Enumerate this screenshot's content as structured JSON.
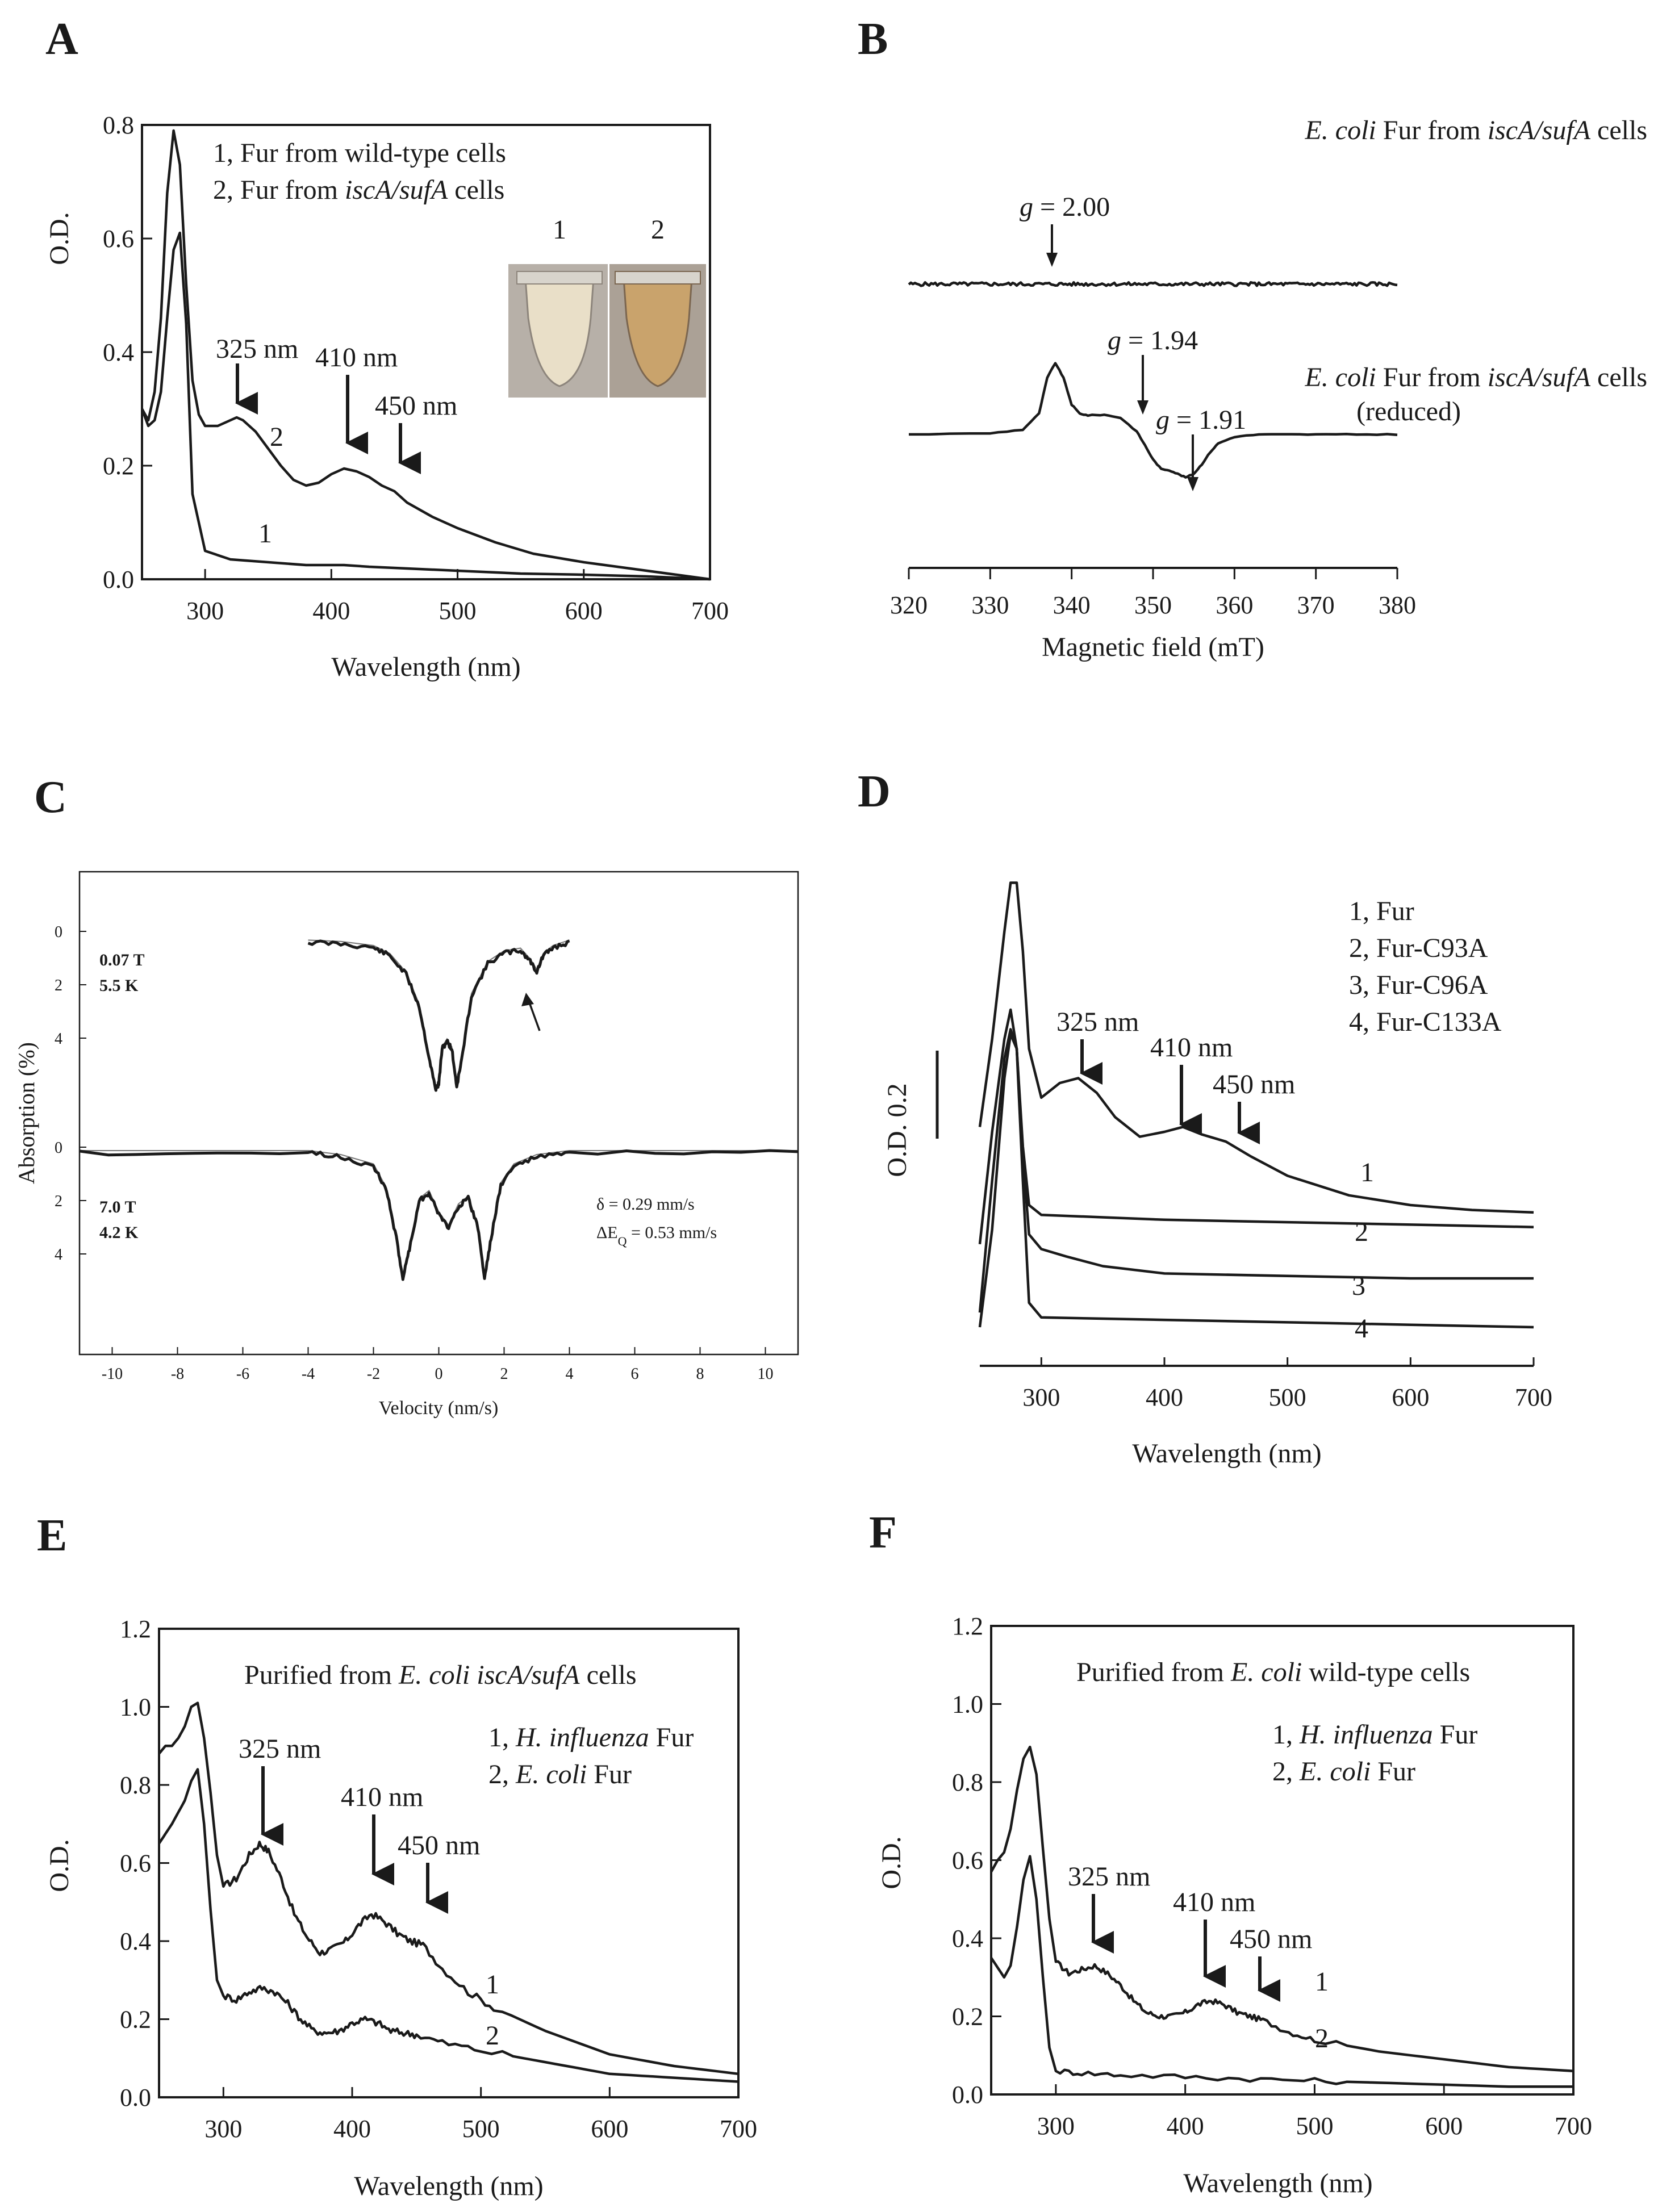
{
  "panels": {
    "A": {
      "letter": "A"
    },
    "B": {
      "letter": "B"
    },
    "C": {
      "letter": "C"
    },
    "D": {
      "letter": "D"
    },
    "E": {
      "letter": "E"
    },
    "F": {
      "letter": "F"
    }
  },
  "colors": {
    "ink": "#1a1a1a",
    "fit": "#777777",
    "tube1": "#e9dfc8",
    "tube2": "#c9a36c",
    "photo_bg": "#b7b0a8"
  },
  "chart_data": [
    {
      "id": "A",
      "type": "line",
      "xlabel": "Wavelength (nm)",
      "ylabel": "O.D.",
      "xlim": [
        250,
        700
      ],
      "ylim": [
        0,
        0.8
      ],
      "xticks": [
        300,
        400,
        500,
        600,
        700
      ],
      "yticks": [
        0.0,
        0.2,
        0.4,
        0.6,
        0.8
      ],
      "legend": [
        "1, Fur from wild-type cells",
        "2, Fur from iscA/sufA cells"
      ],
      "annotations": [
        {
          "text": "325 nm",
          "x": 325,
          "y": 0.29
        },
        {
          "text": "410 nm",
          "x": 410,
          "y": 0.2
        },
        {
          "text": "450 nm",
          "x": 450,
          "y": 0.2
        }
      ],
      "inset": {
        "labels": [
          "1",
          "2"
        ]
      },
      "series": [
        {
          "name": "1",
          "x": [
            250,
            255,
            260,
            265,
            270,
            275,
            280,
            285,
            290,
            300,
            320,
            350,
            380,
            410,
            430,
            450,
            500,
            550,
            600,
            650,
            700
          ],
          "y": [
            0.3,
            0.27,
            0.28,
            0.33,
            0.46,
            0.58,
            0.61,
            0.45,
            0.15,
            0.05,
            0.035,
            0.03,
            0.025,
            0.025,
            0.022,
            0.02,
            0.015,
            0.01,
            0.008,
            0.005,
            0.0
          ]
        },
        {
          "name": "2",
          "x": [
            250,
            255,
            260,
            265,
            270,
            275,
            280,
            285,
            290,
            295,
            300,
            310,
            320,
            325,
            330,
            340,
            350,
            360,
            370,
            380,
            390,
            400,
            410,
            420,
            430,
            440,
            450,
            460,
            480,
            500,
            530,
            560,
            600,
            650,
            700
          ],
          "y": [
            0.3,
            0.28,
            0.33,
            0.46,
            0.68,
            0.79,
            0.73,
            0.52,
            0.35,
            0.29,
            0.27,
            0.27,
            0.28,
            0.285,
            0.28,
            0.26,
            0.23,
            0.2,
            0.175,
            0.165,
            0.17,
            0.185,
            0.195,
            0.19,
            0.18,
            0.165,
            0.155,
            0.135,
            0.11,
            0.09,
            0.065,
            0.045,
            0.03,
            0.015,
            0.0
          ]
        }
      ]
    },
    {
      "id": "B",
      "type": "line",
      "xlabel": "Magnetic field (mT)",
      "xlim": [
        320,
        380
      ],
      "xticks": [
        320,
        330,
        340,
        350,
        360,
        370,
        380
      ],
      "labels": [
        {
          "text_italic": "E. coli",
          "text": " Fur from ",
          "text_italic2": "iscA/sufA",
          "text2": " cells"
        },
        {
          "text_italic": "E. coli",
          "text": " Fur from ",
          "text_italic2": "iscA/sufA",
          "text2": " cells",
          "sub": "(reduced)"
        }
      ],
      "annotations": [
        {
          "g": "g",
          "text": " = 2.00",
          "x": 338
        },
        {
          "g": "g",
          "text": " = 1.94",
          "x": 349
        },
        {
          "g": "g",
          "text": " = 1.91",
          "x": 355
        }
      ],
      "series": [
        {
          "name": "unreduced",
          "x": [
            320,
            380
          ],
          "y": [
            1.95,
            1.95
          ]
        },
        {
          "name": "reduced",
          "x": [
            320,
            330,
            334,
            336,
            337,
            338,
            339,
            340,
            341,
            342,
            344,
            346,
            348,
            349,
            350,
            351,
            352,
            353,
            354,
            355,
            356,
            357,
            358,
            360,
            363,
            366,
            370,
            375,
            380
          ],
          "y": [
            0,
            0.02,
            0.08,
            0.35,
            0.95,
            1.2,
            0.95,
            0.5,
            0.35,
            0.32,
            0.33,
            0.28,
            0.05,
            -0.18,
            -0.42,
            -0.58,
            -0.6,
            -0.66,
            -0.72,
            -0.66,
            -0.5,
            -0.3,
            -0.15,
            -0.04,
            0,
            0,
            0,
            0,
            0
          ]
        }
      ]
    },
    {
      "id": "C",
      "type": "line",
      "xlabel": "Velocity (nm/s)",
      "ylabel": "Absorption (%)",
      "xlim": [
        -11,
        11
      ],
      "xticks": [
        -10,
        -8,
        -6,
        -4,
        -2,
        0,
        2,
        4,
        6,
        8,
        10
      ],
      "upper_yticks": [
        0,
        2,
        4
      ],
      "lower_yticks": [
        0,
        2,
        4
      ],
      "labels_upper": [
        "0.07  T",
        "5.5 K"
      ],
      "labels_lower": [
        "7.0  T",
        "4.2 K"
      ],
      "params": [
        "δ = 0.29 mm/s",
        "ΔE",
        "Q",
        " = 0.53 mm/s"
      ],
      "series": [
        {
          "name": "0.07 T, 5.5 K",
          "x": [
            -4,
            -3,
            -2,
            -1.5,
            -1,
            -0.6,
            -0.3,
            -0.1,
            0,
            0.1,
            0.25,
            0.4,
            0.55,
            0.7,
            1,
            1.5,
            2,
            2.5,
            2.8,
            3,
            3.2,
            3.5,
            4
          ],
          "y": [
            0.2,
            0.25,
            0.4,
            0.7,
            1.4,
            2.6,
            4.5,
            5.7,
            5.5,
            4.2,
            3.9,
            4.2,
            5.6,
            4.6,
            2.2,
            1.0,
            0.6,
            0.5,
            0.9,
            1.3,
            0.7,
            0.4,
            0.2
          ]
        },
        {
          "name": "7.0 T, 4.2 K",
          "x": [
            -11,
            -4,
            -3,
            -2,
            -1.6,
            -1.3,
            -1.1,
            -0.9,
            -0.6,
            -0.3,
            0,
            0.3,
            0.6,
            0.9,
            1.2,
            1.4,
            1.6,
            1.9,
            2.3,
            3,
            4,
            11
          ],
          "y": [
            0,
            0,
            0.15,
            0.5,
            1.4,
            3.2,
            4.7,
            3.6,
            1.8,
            1.5,
            2.3,
            2.8,
            2.0,
            1.7,
            2.8,
            4.7,
            3.2,
            1.2,
            0.5,
            0.15,
            0,
            0
          ]
        }
      ]
    },
    {
      "id": "D",
      "type": "line",
      "xlabel": "Wavelength (nm)",
      "ylabel": "O.D. 0.2",
      "xlim": [
        250,
        700
      ],
      "xticks": [
        300,
        400,
        500,
        600,
        700
      ],
      "legend": [
        "1, Fur",
        "2, Fur-C93A",
        "3, Fur-C96A",
        "4, Fur-C133A"
      ],
      "annotations": [
        {
          "text": "325 nm",
          "x": 330
        },
        {
          "text": "410 nm",
          "x": 415
        },
        {
          "text": "450 nm",
          "x": 460
        }
      ],
      "series": [
        {
          "name": "1",
          "x": [
            250,
            260,
            270,
            275,
            280,
            285,
            290,
            300,
            315,
            330,
            345,
            360,
            380,
            400,
            415,
            430,
            450,
            470,
            500,
            550,
            600,
            650,
            700
          ],
          "y": [
            0.46,
            0.64,
            0.86,
            0.96,
            0.96,
            0.82,
            0.62,
            0.52,
            0.55,
            0.56,
            0.53,
            0.48,
            0.44,
            0.45,
            0.46,
            0.445,
            0.43,
            0.4,
            0.36,
            0.32,
            0.3,
            0.29,
            0.285
          ]
        },
        {
          "name": "2",
          "x": [
            250,
            260,
            270,
            275,
            280,
            285,
            290,
            300,
            350,
            400,
            500,
            600,
            700
          ],
          "y": [
            0.22,
            0.45,
            0.64,
            0.7,
            0.62,
            0.42,
            0.3,
            0.28,
            0.275,
            0.27,
            0.265,
            0.26,
            0.255
          ]
        },
        {
          "name": "3",
          "x": [
            250,
            260,
            270,
            275,
            280,
            285,
            290,
            300,
            320,
            350,
            400,
            500,
            600,
            700
          ],
          "y": [
            0.08,
            0.35,
            0.6,
            0.66,
            0.62,
            0.4,
            0.24,
            0.21,
            0.195,
            0.175,
            0.16,
            0.155,
            0.15,
            0.15
          ]
        },
        {
          "name": "4",
          "x": [
            250,
            260,
            270,
            275,
            280,
            285,
            290,
            300,
            400,
            500,
            600,
            700
          ],
          "y": [
            0.05,
            0.25,
            0.56,
            0.65,
            0.62,
            0.35,
            0.1,
            0.07,
            0.065,
            0.06,
            0.055,
            0.05
          ]
        }
      ]
    },
    {
      "id": "E",
      "type": "line",
      "xlabel": "Wavelength (nm)",
      "ylabel": "O.D.",
      "xlim": [
        250,
        700
      ],
      "ylim": [
        0,
        1.2
      ],
      "xticks": [
        300,
        400,
        500,
        600,
        700
      ],
      "yticks": [
        0.0,
        0.2,
        0.4,
        0.6,
        0.8,
        1.0,
        1.2
      ],
      "title": {
        "text": "Purified from ",
        "italic": "E. coli iscA/sufA",
        "text2": " cells"
      },
      "legend": [
        {
          "num": "1, ",
          "italic": "H. influenza",
          "text": " Fur"
        },
        {
          "num": "2, ",
          "italic": "E. coli",
          "text": " Fur"
        }
      ],
      "annotations": [
        {
          "text": "325 nm",
          "x": 328,
          "y": 0.66
        },
        {
          "text": "410 nm",
          "x": 415,
          "y": 0.48
        },
        {
          "text": "450 nm",
          "x": 455,
          "y": 0.39
        }
      ],
      "series": [
        {
          "name": "1",
          "x": [
            250,
            255,
            260,
            265,
            270,
            275,
            280,
            285,
            290,
            295,
            300,
            310,
            320,
            328,
            335,
            345,
            355,
            365,
            375,
            385,
            395,
            405,
            415,
            425,
            435,
            445,
            455,
            470,
            490,
            510,
            550,
            600,
            650,
            700
          ],
          "y": [
            0.88,
            0.9,
            0.9,
            0.92,
            0.95,
            1.0,
            1.01,
            0.92,
            0.78,
            0.62,
            0.54,
            0.56,
            0.62,
            0.65,
            0.63,
            0.56,
            0.47,
            0.41,
            0.37,
            0.38,
            0.4,
            0.44,
            0.47,
            0.45,
            0.42,
            0.4,
            0.39,
            0.33,
            0.27,
            0.23,
            0.17,
            0.11,
            0.08,
            0.06
          ]
        },
        {
          "name": "2",
          "x": [
            250,
            260,
            270,
            275,
            280,
            285,
            290,
            295,
            300,
            310,
            320,
            330,
            340,
            350,
            360,
            370,
            380,
            390,
            400,
            410,
            420,
            430,
            440,
            450,
            470,
            500,
            550,
            600,
            650,
            700
          ],
          "y": [
            0.65,
            0.7,
            0.76,
            0.81,
            0.84,
            0.7,
            0.48,
            0.3,
            0.26,
            0.25,
            0.27,
            0.28,
            0.27,
            0.24,
            0.2,
            0.17,
            0.165,
            0.17,
            0.19,
            0.2,
            0.19,
            0.17,
            0.165,
            0.16,
            0.14,
            0.12,
            0.09,
            0.06,
            0.05,
            0.04
          ]
        }
      ]
    },
    {
      "id": "F",
      "type": "line",
      "xlabel": "Wavelength (nm)",
      "ylabel": "O.D.",
      "xlim": [
        250,
        700
      ],
      "ylim": [
        0,
        1.2
      ],
      "xticks": [
        300,
        400,
        500,
        600,
        700
      ],
      "yticks": [
        0.0,
        0.2,
        0.4,
        0.6,
        0.8,
        1.0,
        1.2
      ],
      "title": {
        "text": "Purified from ",
        "italic": "E. coli",
        "text2": " wild-type cells"
      },
      "legend": [
        {
          "num": "1, ",
          "italic": "H. influenza",
          "text": " Fur"
        },
        {
          "num": "2, ",
          "italic": "E. coli",
          "text": " Fur"
        }
      ],
      "annotations": [
        {
          "text": "325 nm",
          "x": 325,
          "y": 0.33
        },
        {
          "text": "410 nm",
          "x": 412,
          "y": 0.24
        },
        {
          "text": "450 nm",
          "x": 455,
          "y": 0.2
        }
      ],
      "series": [
        {
          "name": "1",
          "x": [
            250,
            255,
            260,
            265,
            270,
            275,
            280,
            285,
            290,
            295,
            300,
            310,
            320,
            330,
            340,
            350,
            360,
            370,
            380,
            390,
            400,
            410,
            420,
            430,
            440,
            450,
            460,
            480,
            500,
            550,
            600,
            650,
            700
          ],
          "y": [
            0.57,
            0.6,
            0.62,
            0.68,
            0.78,
            0.86,
            0.89,
            0.82,
            0.63,
            0.45,
            0.34,
            0.31,
            0.32,
            0.33,
            0.31,
            0.28,
            0.24,
            0.21,
            0.2,
            0.2,
            0.21,
            0.23,
            0.24,
            0.23,
            0.21,
            0.2,
            0.19,
            0.16,
            0.14,
            0.11,
            0.09,
            0.07,
            0.06
          ]
        },
        {
          "name": "2",
          "x": [
            250,
            260,
            265,
            270,
            275,
            280,
            285,
            290,
            295,
            300,
            320,
            350,
            400,
            450,
            500,
            550,
            600,
            650,
            700
          ],
          "y": [
            0.35,
            0.3,
            0.33,
            0.43,
            0.55,
            0.61,
            0.5,
            0.3,
            0.12,
            0.06,
            0.055,
            0.05,
            0.045,
            0.04,
            0.035,
            0.03,
            0.025,
            0.02,
            0.02
          ]
        }
      ]
    }
  ]
}
